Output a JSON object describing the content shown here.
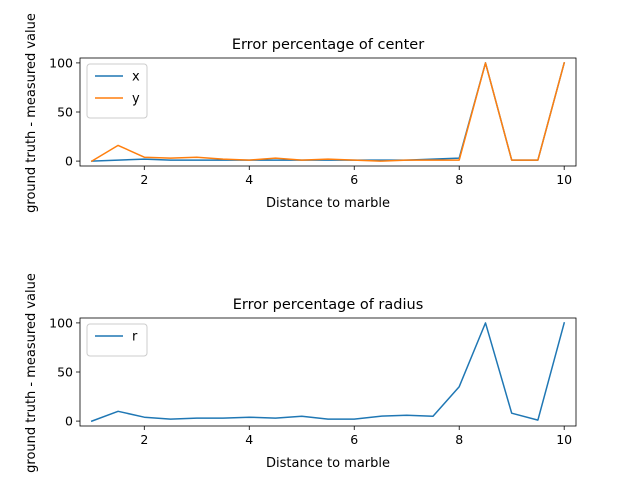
{
  "chart_data": [
    {
      "type": "line",
      "title": "Error percentage of center",
      "xlabel": "Distance to marble",
      "ylabel": "ground truth - measured value",
      "xlim": [
        0.775,
        10.225
      ],
      "ylim": [
        -5,
        105
      ],
      "xticks": [
        "2",
        "4",
        "6",
        "8",
        "10"
      ],
      "yticks": [
        "0",
        "50",
        "100"
      ],
      "legend_position": "upper-left",
      "grid": false,
      "x": [
        1,
        1.5,
        2,
        2.5,
        3,
        3.5,
        4,
        4.5,
        5,
        5.5,
        6,
        6.5,
        7,
        7.5,
        8,
        8.5,
        9,
        9.5,
        10
      ],
      "series": [
        {
          "name": "x",
          "color": "#1f77b4",
          "values": [
            0,
            1,
            2,
            1,
            1,
            1,
            1,
            1,
            1,
            1,
            1,
            1,
            1,
            2,
            3,
            100,
            1,
            1,
            100
          ]
        },
        {
          "name": "y",
          "color": "#ff7f0e",
          "values": [
            0,
            16,
            4,
            3,
            4,
            2,
            1,
            3,
            1,
            2,
            1,
            0,
            1,
            1,
            1,
            100,
            1,
            1,
            100
          ]
        }
      ]
    },
    {
      "type": "line",
      "title": "Error percentage of radius",
      "xlabel": "Distance to marble",
      "ylabel": "ground truth - measured value",
      "xlim": [
        0.775,
        10.225
      ],
      "ylim": [
        -5,
        105
      ],
      "xticks": [
        "2",
        "4",
        "6",
        "8",
        "10"
      ],
      "yticks": [
        "0",
        "50",
        "100"
      ],
      "legend_position": "upper-left",
      "grid": false,
      "x": [
        1,
        1.5,
        2,
        2.5,
        3,
        3.5,
        4,
        4.5,
        5,
        5.5,
        6,
        6.5,
        7,
        7.5,
        8,
        8.5,
        9,
        9.5,
        10
      ],
      "series": [
        {
          "name": "r",
          "color": "#1f77b4",
          "values": [
            0,
            10,
            4,
            2,
            3,
            3,
            4,
            3,
            5,
            2,
            2,
            5,
            6,
            5,
            35,
            100,
            8,
            1,
            100
          ]
        }
      ]
    }
  ]
}
